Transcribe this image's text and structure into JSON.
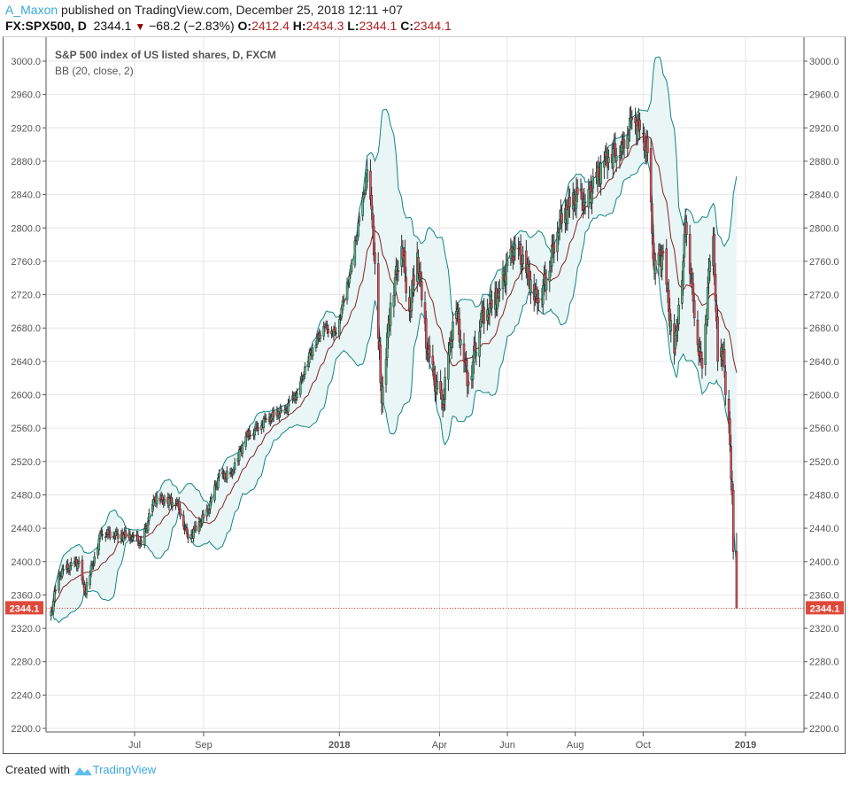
{
  "header": {
    "user": "A_Maxon",
    "published": "published on TradingView.com, December 25, 2018 12:11 +07",
    "symbol": "FX:SPX500, D",
    "last": "2344.1",
    "change": "−68.2 (−2.83%)",
    "o_label": "O:",
    "o": "2412.4",
    "h_label": "H:",
    "h": "2434.3",
    "l_label": "L:",
    "l": "2344.1",
    "c_label": "C:",
    "c": "2344.1"
  },
  "footer": {
    "created_with": "Created with",
    "brand": "TradingView"
  },
  "colors": {
    "up": "#53b987",
    "down": "#eb4d5c",
    "bb_band": "#138484",
    "bb_basis": "#872323",
    "bb_fill": "#eaf5f5",
    "price_line": "#e0301e"
  },
  "chart_data": {
    "type": "candlestick",
    "title": "S&P 500 index of US listed shares, D, FXCM",
    "indicator": "BB (20, close, 2)",
    "ylim": [
      2200,
      3000
    ],
    "y_ticks": [
      "2200.0",
      "2240.0",
      "2280.0",
      "2320.0",
      "2360.0",
      "2400.0",
      "2440.0",
      "2480.0",
      "2520.0",
      "2560.0",
      "2600.0",
      "2640.0",
      "2680.0",
      "2720.0",
      "2760.0",
      "2800.0",
      "2840.0",
      "2880.0",
      "2920.0",
      "2960.0",
      "3000.0"
    ],
    "x_ticks": [
      {
        "label": "Jul",
        "date": "2017-07-01",
        "bold": false
      },
      {
        "label": "Sep",
        "date": "2017-09-01",
        "bold": false
      },
      {
        "label": "2018",
        "date": "2018-01-01",
        "bold": true
      },
      {
        "label": "Apr",
        "date": "2018-04-01",
        "bold": false
      },
      {
        "label": "Jun",
        "date": "2018-06-01",
        "bold": false
      },
      {
        "label": "Aug",
        "date": "2018-08-01",
        "bold": false
      },
      {
        "label": "Oct",
        "date": "2018-10-01",
        "bold": false
      },
      {
        "label": "2019",
        "date": "2019-01-01",
        "bold": true
      }
    ],
    "last_price_label": "2344.1",
    "last_price": 2344.1,
    "last_bar": {
      "o": 2412.4,
      "h": 2434.3,
      "l": 2344.1,
      "c": 2344.1
    },
    "close_anchors": [
      [
        "2017-04-17",
        2340
      ],
      [
        "2017-04-24",
        2385
      ],
      [
        "2017-05-12",
        2400
      ],
      [
        "2017-05-17",
        2362
      ],
      [
        "2017-06-01",
        2435
      ],
      [
        "2017-06-29",
        2430
      ],
      [
        "2017-07-07",
        2422
      ],
      [
        "2017-07-19",
        2475
      ],
      [
        "2017-08-08",
        2472
      ],
      [
        "2017-08-18",
        2428
      ],
      [
        "2017-09-05",
        2460
      ],
      [
        "2017-09-14",
        2500
      ],
      [
        "2017-09-26",
        2506
      ],
      [
        "2017-10-09",
        2550
      ],
      [
        "2017-10-27",
        2570
      ],
      [
        "2017-11-13",
        2582
      ],
      [
        "2017-11-24",
        2602
      ],
      [
        "2017-12-06",
        2650
      ],
      [
        "2017-12-18",
        2682
      ],
      [
        "2017-12-29",
        2673
      ],
      [
        "2018-01-11",
        2750
      ],
      [
        "2018-01-23",
        2840
      ],
      [
        "2018-01-26",
        2870
      ],
      [
        "2018-01-31",
        2800
      ],
      [
        "2018-02-08",
        2590
      ],
      [
        "2018-02-16",
        2710
      ],
      [
        "2018-02-26",
        2778
      ],
      [
        "2018-03-05",
        2700
      ],
      [
        "2018-03-12",
        2770
      ],
      [
        "2018-03-21",
        2650
      ],
      [
        "2018-03-29",
        2610
      ],
      [
        "2018-04-04",
        2585
      ],
      [
        "2018-04-10",
        2660
      ],
      [
        "2018-04-16",
        2700
      ],
      [
        "2018-04-23",
        2640
      ],
      [
        "2018-04-27",
        2612
      ],
      [
        "2018-05-08",
        2690
      ],
      [
        "2018-05-24",
        2722
      ],
      [
        "2018-06-08",
        2780
      ],
      [
        "2018-06-20",
        2742
      ],
      [
        "2018-06-28",
        2710
      ],
      [
        "2018-07-06",
        2740
      ],
      [
        "2018-07-18",
        2810
      ],
      [
        "2018-08-03",
        2840
      ],
      [
        "2018-08-10",
        2830
      ],
      [
        "2018-08-27",
        2880
      ],
      [
        "2018-09-12",
        2900
      ],
      [
        "2018-09-21",
        2930
      ],
      [
        "2018-09-28",
        2918
      ],
      [
        "2018-10-05",
        2890
      ],
      [
        "2018-10-11",
        2750
      ],
      [
        "2018-10-19",
        2770
      ],
      [
        "2018-10-24",
        2700
      ],
      [
        "2018-10-29",
        2650
      ],
      [
        "2018-11-06",
        2760
      ],
      [
        "2018-11-08",
        2810
      ],
      [
        "2018-11-14",
        2730
      ],
      [
        "2018-11-19",
        2660
      ],
      [
        "2018-11-23",
        2632
      ],
      [
        "2018-11-30",
        2760
      ],
      [
        "2018-12-03",
        2790
      ],
      [
        "2018-12-07",
        2640
      ],
      [
        "2018-12-12",
        2650
      ],
      [
        "2018-12-14",
        2600
      ],
      [
        "2018-12-18",
        2540
      ],
      [
        "2018-12-20",
        2480
      ],
      [
        "2018-12-21",
        2412
      ],
      [
        "2018-12-24",
        2344.1
      ]
    ]
  }
}
